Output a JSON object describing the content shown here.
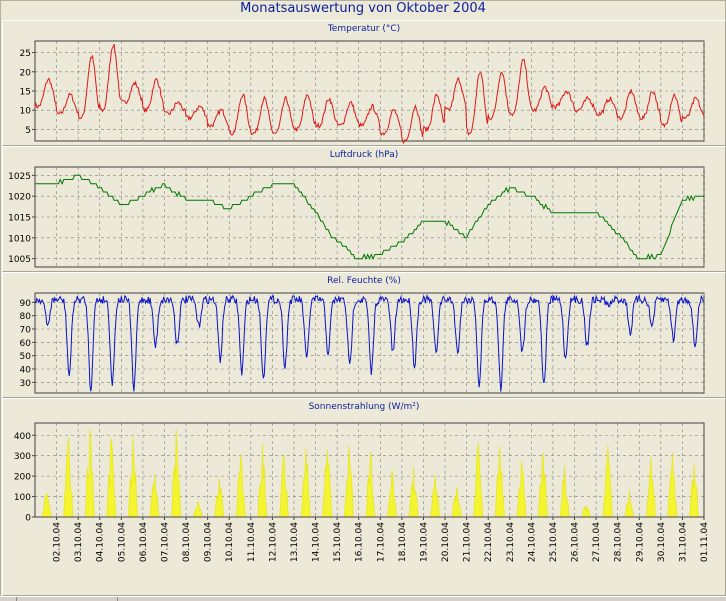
{
  "title": "Monatsauswertung von Oktober 2004",
  "x_labels": [
    "02.10.04",
    "03.10.04",
    "04.10.04",
    "05.10.04",
    "06.10.04",
    "07.10.04",
    "08.10.04",
    "09.10.04",
    "10.10.04",
    "11.10.04",
    "12.10.04",
    "13.10.04",
    "14.10.04",
    "15.10.04",
    "16.10.04",
    "17.10.04",
    "18.10.04",
    "19.10.04",
    "20.10.04",
    "21.10.04",
    "22.10.04",
    "23.10.04",
    "24.10.04",
    "25.10.04",
    "26.10.04",
    "27.10.04",
    "28.10.04",
    "29.10.04",
    "30.10.04",
    "31.10.04",
    "01.11.04"
  ],
  "colors": {
    "title": "#0a1f9a",
    "temperature": "#e01818",
    "pressure": "#007800",
    "humidity": "#0a14c8",
    "radiation": "#f4f430",
    "grid": "#808080",
    "background": "#ece9d8"
  },
  "chart_data": [
    {
      "type": "line",
      "title": "Temperatur (°C)",
      "ylim": [
        2,
        28
      ],
      "yticks": [
        "25",
        "20",
        "15",
        "10",
        "5"
      ],
      "x_range": [
        "01.10.04",
        "01.11.04"
      ],
      "grid": true,
      "daily_max": [
        18,
        14,
        24,
        27,
        17,
        18,
        12,
        11,
        10,
        14,
        13,
        13,
        14,
        13,
        12,
        11,
        10,
        11,
        14,
        18,
        20,
        20,
        23,
        16,
        15,
        13,
        13,
        15,
        15,
        14,
        13
      ],
      "daily_min": [
        11,
        9,
        8,
        10,
        12,
        10,
        9,
        8,
        6,
        4,
        4,
        4,
        5,
        6,
        6,
        6,
        4,
        2,
        5,
        10,
        4,
        8,
        9,
        10,
        11,
        10,
        9,
        8,
        8,
        6,
        8
      ]
    },
    {
      "type": "line",
      "title": "Luftdruck (hPa)",
      "ylim": [
        1003,
        1027
      ],
      "yticks": [
        "1025",
        "1020",
        "1015",
        "1010",
        "1005"
      ],
      "x_range": [
        "01.10.04",
        "01.11.04"
      ],
      "grid": true,
      "daily_mean": [
        1023,
        1023,
        1025,
        1022,
        1018,
        1020,
        1023,
        1019,
        1019,
        1017,
        1020,
        1023,
        1023,
        1016,
        1009,
        1005,
        1006,
        1009,
        1014,
        1014,
        1010,
        1018,
        1022,
        1020,
        1016,
        1016,
        1016,
        1011,
        1005,
        1006,
        1019,
        1020
      ]
    },
    {
      "type": "line",
      "title": "Rel. Feuchte (%)",
      "ylim": [
        22,
        97
      ],
      "yticks": [
        "90",
        "80",
        "70",
        "60",
        "50",
        "40",
        "30"
      ],
      "x_range": [
        "01.10.04",
        "01.11.04"
      ],
      "grid": true,
      "daily_min": [
        75,
        38,
        27,
        32,
        27,
        60,
        62,
        75,
        50,
        40,
        35,
        45,
        50,
        55,
        45,
        40,
        55,
        45,
        55,
        55,
        30,
        28,
        55,
        30,
        50,
        60,
        90,
        70,
        75,
        65,
        60
      ]
    },
    {
      "type": "bar",
      "title": "Sonnenstrahlung (W/m²)",
      "ylim": [
        0,
        460
      ],
      "yticks": [
        "400",
        "300",
        "200",
        "100",
        "0"
      ],
      "x_range": [
        "01.10.04",
        "01.11.04"
      ],
      "grid": true,
      "daily_peak": [
        115,
        390,
        430,
        385,
        395,
        210,
        430,
        75,
        190,
        305,
        360,
        305,
        335,
        330,
        350,
        320,
        230,
        245,
        205,
        145,
        360,
        345,
        275,
        315,
        250,
        60,
        350,
        130,
        295,
        315,
        260
      ]
    }
  ]
}
